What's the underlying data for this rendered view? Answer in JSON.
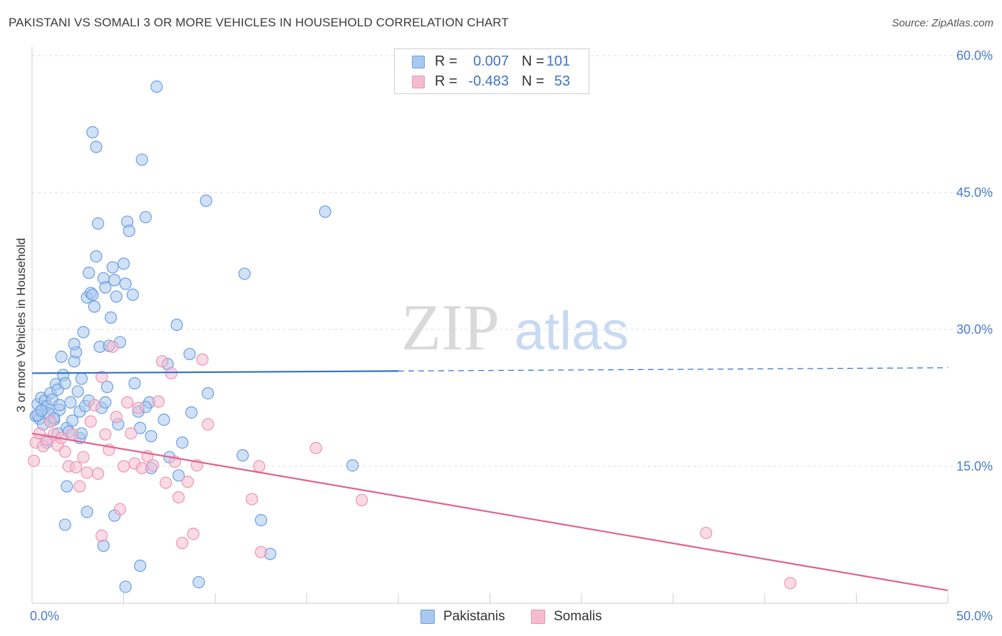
{
  "header": {
    "title": "PAKISTANI VS SOMALI 3 OR MORE VEHICLES IN HOUSEHOLD CORRELATION CHART",
    "source": "Source: ZipAtlas.com"
  },
  "watermark": {
    "zip": "ZIP",
    "atlas": "atlas"
  },
  "legend": {
    "rows": [
      {
        "r_label": "R =",
        "r_value": "0.007",
        "n_label": "N =",
        "n_value": "101"
      },
      {
        "r_label": "R =",
        "r_value": "-0.483",
        "n_label": "N =",
        "n_value": "53"
      }
    ]
  },
  "bottom_legend": {
    "items": [
      {
        "label": "Pakistanis"
      },
      {
        "label": "Somalis"
      }
    ]
  },
  "colors": {
    "pakistani_fill": "#a9c8f0",
    "pakistani_stroke": "#6b9ee0",
    "pakistani_line": "#2e6fcc",
    "somali_fill": "#f5bcd0",
    "somali_stroke": "#ec94b2",
    "somali_line": "#e0628f",
    "tick_text": "#4a7cc9",
    "grid": "#dcdcdc"
  },
  "chart_data": {
    "type": "scatter",
    "title": "PAKISTANI VS SOMALI 3 OR MORE VEHICLES IN HOUSEHOLD CORRELATION CHART",
    "xlabel": "",
    "ylabel": "3 or more Vehicles in Household",
    "xlim": [
      0,
      50
    ],
    "ylim": [
      0,
      60
    ],
    "x_tick_labels": [
      "0.0%",
      "50.0%"
    ],
    "y_ticks": [
      15,
      30,
      45,
      60
    ],
    "y_tick_labels": [
      "15.0%",
      "30.0%",
      "45.0%",
      "60.0%"
    ],
    "grid": true,
    "legend_position": "top-center",
    "series": [
      {
        "name": "Pakistanis",
        "points": [
          [
            0.2,
            20.5
          ],
          [
            0.3,
            21.8
          ],
          [
            0.4,
            20.2
          ],
          [
            0.5,
            22.5
          ],
          [
            0.6,
            21.2
          ],
          [
            0.6,
            19.6
          ],
          [
            0.7,
            22.2
          ],
          [
            0.8,
            21.6
          ],
          [
            0.9,
            20.8
          ],
          [
            1.0,
            23.0
          ],
          [
            1.1,
            22.3
          ],
          [
            1.2,
            20.1
          ],
          [
            1.3,
            24.0
          ],
          [
            1.4,
            23.4
          ],
          [
            1.5,
            21.2
          ],
          [
            1.6,
            27.0
          ],
          [
            1.7,
            25.0
          ],
          [
            1.8,
            24.1
          ],
          [
            1.9,
            19.2
          ],
          [
            2.0,
            18.8
          ],
          [
            2.1,
            22.0
          ],
          [
            2.2,
            20.0
          ],
          [
            2.3,
            26.5
          ],
          [
            2.4,
            27.5
          ],
          [
            2.5,
            23.2
          ],
          [
            2.6,
            21.0
          ],
          [
            2.7,
            24.6
          ],
          [
            2.8,
            29.7
          ],
          [
            2.9,
            21.6
          ],
          [
            3.0,
            33.5
          ],
          [
            3.1,
            36.2
          ],
          [
            3.2,
            34.0
          ],
          [
            3.3,
            33.8
          ],
          [
            3.4,
            32.5
          ],
          [
            3.5,
            38.0
          ],
          [
            3.6,
            41.6
          ],
          [
            3.7,
            28.1
          ],
          [
            3.8,
            21.4
          ],
          [
            3.9,
            35.6
          ],
          [
            4.0,
            34.6
          ],
          [
            4.1,
            23.7
          ],
          [
            4.2,
            28.2
          ],
          [
            4.3,
            31.3
          ],
          [
            4.4,
            36.8
          ],
          [
            4.5,
            35.4
          ],
          [
            4.6,
            33.6
          ],
          [
            4.7,
            19.6
          ],
          [
            4.8,
            28.6
          ],
          [
            5.0,
            37.2
          ],
          [
            5.1,
            35.0
          ],
          [
            5.2,
            41.8
          ],
          [
            5.3,
            40.8
          ],
          [
            5.5,
            33.8
          ],
          [
            5.6,
            24.1
          ],
          [
            5.8,
            21.0
          ],
          [
            5.9,
            19.2
          ],
          [
            6.0,
            48.6
          ],
          [
            6.2,
            42.3
          ],
          [
            6.4,
            22.0
          ],
          [
            6.5,
            14.8
          ],
          [
            6.8,
            56.6
          ],
          [
            7.2,
            20.1
          ],
          [
            7.4,
            26.2
          ],
          [
            7.9,
            30.5
          ],
          [
            8.2,
            17.6
          ],
          [
            8.6,
            27.3
          ],
          [
            8.7,
            20.9
          ],
          [
            9.5,
            44.1
          ],
          [
            9.6,
            23.0
          ],
          [
            11.5,
            16.2
          ],
          [
            11.6,
            36.1
          ],
          [
            12.5,
            9.1
          ],
          [
            13.0,
            5.4
          ],
          [
            16.0,
            42.9
          ],
          [
            17.5,
            15.1
          ],
          [
            1.4,
            18.6
          ],
          [
            2.6,
            18.1
          ],
          [
            3.0,
            10.0
          ],
          [
            3.3,
            51.6
          ],
          [
            3.5,
            50.0
          ],
          [
            1.9,
            12.8
          ],
          [
            1.8,
            8.6
          ],
          [
            3.9,
            6.3
          ],
          [
            4.5,
            9.6
          ],
          [
            5.9,
            4.1
          ],
          [
            9.1,
            2.3
          ],
          [
            5.1,
            1.8
          ],
          [
            6.5,
            18.3
          ],
          [
            8.0,
            14.0
          ],
          [
            2.7,
            18.6
          ],
          [
            0.3,
            20.6
          ],
          [
            0.5,
            21.1
          ],
          [
            0.8,
            17.6
          ],
          [
            1.0,
            19.9
          ],
          [
            1.2,
            20.3
          ],
          [
            1.5,
            21.7
          ],
          [
            2.3,
            28.4
          ],
          [
            3.1,
            22.2
          ],
          [
            4.0,
            22.0
          ],
          [
            6.2,
            21.5
          ],
          [
            7.5,
            16.0
          ]
        ]
      },
      {
        "name": "Somalis",
        "points": [
          [
            0.1,
            15.6
          ],
          [
            0.2,
            17.6
          ],
          [
            0.4,
            18.6
          ],
          [
            0.6,
            17.2
          ],
          [
            0.8,
            17.9
          ],
          [
            1.0,
            19.9
          ],
          [
            1.2,
            18.5
          ],
          [
            1.4,
            17.3
          ],
          [
            1.6,
            18.1
          ],
          [
            1.8,
            16.6
          ],
          [
            2.0,
            15.0
          ],
          [
            2.2,
            18.5
          ],
          [
            2.4,
            14.9
          ],
          [
            2.6,
            12.8
          ],
          [
            2.8,
            16.0
          ],
          [
            3.0,
            14.3
          ],
          [
            3.2,
            19.9
          ],
          [
            3.4,
            21.7
          ],
          [
            3.6,
            14.2
          ],
          [
            3.8,
            24.8
          ],
          [
            4.0,
            18.5
          ],
          [
            4.2,
            16.8
          ],
          [
            4.4,
            28.1
          ],
          [
            4.6,
            20.4
          ],
          [
            4.8,
            10.3
          ],
          [
            5.0,
            15.0
          ],
          [
            5.2,
            22.0
          ],
          [
            5.4,
            18.6
          ],
          [
            5.6,
            15.3
          ],
          [
            5.8,
            21.4
          ],
          [
            6.0,
            14.8
          ],
          [
            6.3,
            16.1
          ],
          [
            6.6,
            15.1
          ],
          [
            6.9,
            22.1
          ],
          [
            7.1,
            26.5
          ],
          [
            7.3,
            13.2
          ],
          [
            7.6,
            25.2
          ],
          [
            7.8,
            15.5
          ],
          [
            8.0,
            11.6
          ],
          [
            8.2,
            6.6
          ],
          [
            8.5,
            13.3
          ],
          [
            8.8,
            7.6
          ],
          [
            9.0,
            15.1
          ],
          [
            9.3,
            26.7
          ],
          [
            9.6,
            19.6
          ],
          [
            12.0,
            11.4
          ],
          [
            12.4,
            15.0
          ],
          [
            12.5,
            5.6
          ],
          [
            15.5,
            17.0
          ],
          [
            18.0,
            11.3
          ],
          [
            36.8,
            7.7
          ],
          [
            41.4,
            2.2
          ],
          [
            3.8,
            7.4
          ]
        ]
      }
    ],
    "trend_lines": [
      {
        "series": "Pakistanis",
        "x": [
          0,
          50
        ],
        "y": [
          25.2,
          25.8
        ],
        "solid_until_x": 20
      },
      {
        "series": "Somalis",
        "x": [
          0,
          50
        ],
        "y": [
          18.6,
          1.4
        ]
      }
    ]
  }
}
